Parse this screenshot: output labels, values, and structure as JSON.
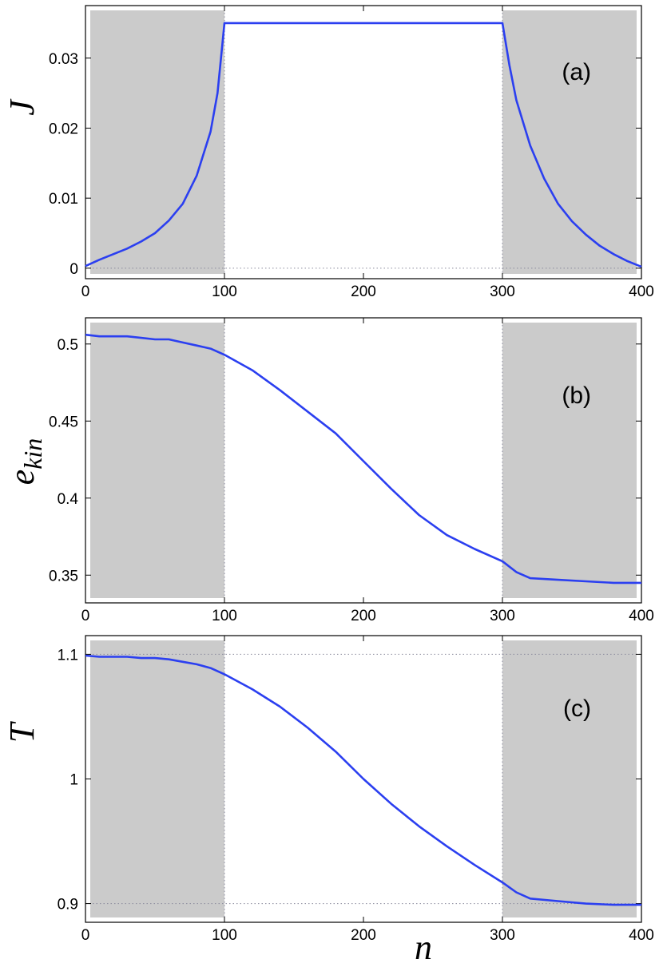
{
  "chart_data": [
    {
      "type": "line",
      "panel_label": "(a)",
      "ylabel": "J",
      "xlabel": "",
      "xlim": [
        0,
        400
      ],
      "ylim": [
        -0.0015,
        0.0375
      ],
      "xticks": [
        0,
        100,
        200,
        300,
        400
      ],
      "yticks": [
        0,
        0.01,
        0.02,
        0.03
      ],
      "ytick_labels": [
        "0",
        "0.01",
        "0.02",
        "0.03"
      ],
      "shaded_regions": [
        [
          0,
          100
        ],
        [
          300,
          400
        ]
      ],
      "reference_lines_x": [
        100,
        300
      ],
      "reference_lines_y": [
        0
      ],
      "grid": false,
      "series": [
        {
          "color": "#2b3ff0",
          "x": [
            0,
            10,
            20,
            30,
            40,
            50,
            60,
            70,
            80,
            90,
            95,
            100,
            150,
            200,
            250,
            300,
            305,
            310,
            320,
            330,
            340,
            350,
            360,
            370,
            380,
            390,
            400
          ],
          "y": [
            0.0003,
            0.0012,
            0.002,
            0.0028,
            0.0038,
            0.005,
            0.0068,
            0.0092,
            0.0132,
            0.0195,
            0.025,
            0.035,
            0.035,
            0.035,
            0.035,
            0.035,
            0.029,
            0.024,
            0.0175,
            0.0128,
            0.0092,
            0.0067,
            0.0048,
            0.0032,
            0.002,
            0.001,
            0.0002
          ]
        }
      ]
    },
    {
      "type": "line",
      "panel_label": "(b)",
      "ylabel": "e",
      "ylabel_sub": "kin",
      "xlabel": "",
      "xlim": [
        0,
        400
      ],
      "ylim": [
        0.332,
        0.517
      ],
      "xticks": [
        0,
        100,
        200,
        300,
        400
      ],
      "yticks": [
        0.35,
        0.4,
        0.45,
        0.5
      ],
      "ytick_labels": [
        "0.35",
        "0.4",
        "0.45",
        "0.5"
      ],
      "shaded_regions": [
        [
          0,
          100
        ],
        [
          300,
          400
        ]
      ],
      "reference_lines_x": [
        100,
        300
      ],
      "reference_lines_y": [],
      "grid": false,
      "series": [
        {
          "color": "#2b3ff0",
          "x": [
            0,
            10,
            20,
            30,
            40,
            50,
            60,
            70,
            80,
            90,
            100,
            120,
            140,
            160,
            180,
            200,
            220,
            240,
            260,
            280,
            300,
            310,
            320,
            340,
            360,
            380,
            400
          ],
          "y": [
            0.506,
            0.505,
            0.505,
            0.505,
            0.504,
            0.503,
            0.503,
            0.501,
            0.499,
            0.497,
            0.493,
            0.483,
            0.47,
            0.456,
            0.442,
            0.424,
            0.406,
            0.389,
            0.376,
            0.367,
            0.359,
            0.352,
            0.348,
            0.347,
            0.346,
            0.345,
            0.345
          ]
        }
      ]
    },
    {
      "type": "line",
      "panel_label": "(c)",
      "ylabel": "T",
      "xlabel": "n",
      "xlim": [
        0,
        400
      ],
      "ylim": [
        0.885,
        1.115
      ],
      "xticks": [
        0,
        100,
        200,
        300,
        400
      ],
      "yticks": [
        0.9,
        1.0,
        1.1
      ],
      "ytick_labels": [
        "0.9",
        "1",
        "1.1"
      ],
      "shaded_regions": [
        [
          0,
          100
        ],
        [
          300,
          400
        ]
      ],
      "reference_lines_x": [
        100,
        300
      ],
      "reference_lines_y": [
        1.1,
        0.9
      ],
      "grid": false,
      "series": [
        {
          "color": "#2b3ff0",
          "x": [
            0,
            10,
            20,
            30,
            40,
            50,
            60,
            70,
            80,
            90,
            100,
            120,
            140,
            160,
            180,
            200,
            220,
            240,
            260,
            280,
            300,
            310,
            320,
            340,
            360,
            380,
            400
          ],
          "y": [
            1.099,
            1.098,
            1.098,
            1.098,
            1.097,
            1.097,
            1.096,
            1.094,
            1.092,
            1.089,
            1.084,
            1.072,
            1.058,
            1.041,
            1.022,
            1.0,
            0.98,
            0.962,
            0.946,
            0.931,
            0.917,
            0.909,
            0.904,
            0.902,
            0.9,
            0.899,
            0.899
          ]
        }
      ]
    }
  ]
}
